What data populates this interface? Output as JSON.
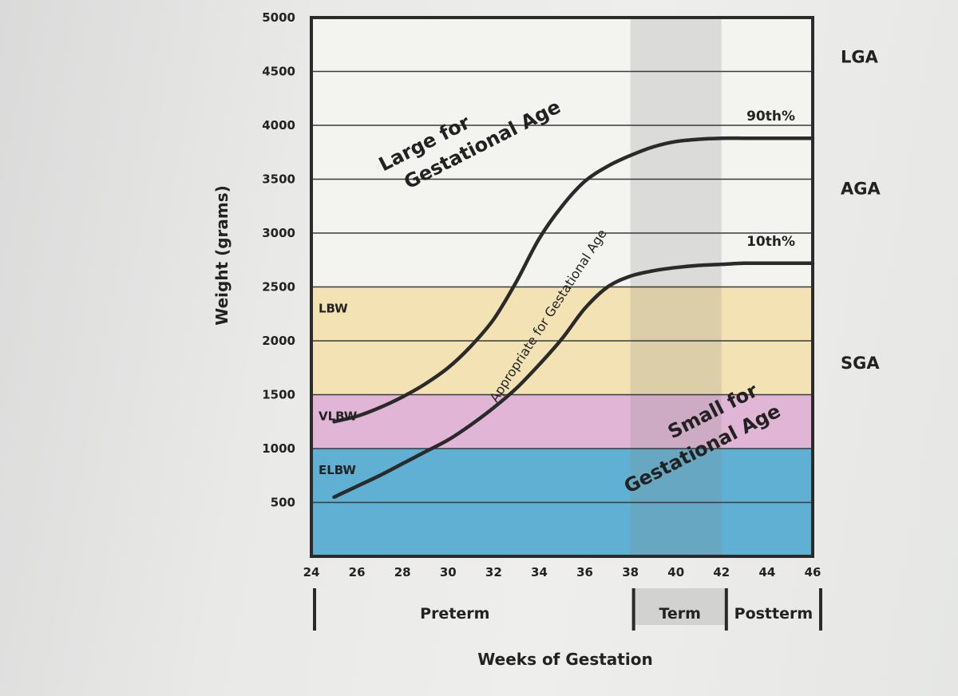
{
  "chart_data": {
    "type": "line",
    "xlabel": "Weeks of Gestation",
    "ylabel": "Weight (grams)",
    "xlim": [
      24,
      46
    ],
    "ylim": [
      0,
      5000
    ],
    "x_ticks": [
      "24",
      "26",
      "28",
      "30",
      "32",
      "34",
      "36",
      "38",
      "40",
      "42",
      "44",
      "46"
    ],
    "y_ticks": [
      "5000",
      "4500",
      "4000",
      "3500",
      "3000",
      "2500",
      "2000",
      "1500",
      "1000",
      "500"
    ],
    "grid": true,
    "series": [
      {
        "name": "90th%",
        "x": [
          25,
          26,
          27,
          28,
          29,
          30,
          31,
          32,
          33,
          34,
          35,
          36,
          37,
          38,
          39,
          40,
          41,
          42,
          43,
          44,
          45,
          46
        ],
        "values": [
          1250,
          1300,
          1380,
          1480,
          1600,
          1750,
          1950,
          2200,
          2550,
          2950,
          3250,
          3480,
          3620,
          3720,
          3800,
          3850,
          3870,
          3880,
          3880,
          3880,
          3880,
          3880
        ]
      },
      {
        "name": "10th%",
        "x": [
          25,
          26,
          27,
          28,
          29,
          30,
          31,
          32,
          33,
          34,
          35,
          36,
          37,
          38,
          39,
          40,
          41,
          42,
          43,
          44,
          45,
          46
        ],
        "values": [
          550,
          650,
          750,
          860,
          970,
          1080,
          1220,
          1380,
          1560,
          1780,
          2020,
          2300,
          2500,
          2600,
          2650,
          2680,
          2700,
          2710,
          2720,
          2720,
          2720,
          2720
        ]
      }
    ],
    "weight_bands": [
      {
        "label": "LBW",
        "from": 1500,
        "to": 2500,
        "color": "#f3e2b3"
      },
      {
        "label": "VLBW",
        "from": 1000,
        "to": 1500,
        "color": "#e1b5d6"
      },
      {
        "label": "ELBW",
        "from": 0,
        "to": 1000,
        "color": "#5fb0d2"
      }
    ],
    "term_shading": {
      "from": 38,
      "to": 42
    },
    "categories": [
      "LGA",
      "AGA",
      "SGA"
    ],
    "region_labels": {
      "large": [
        "Large for",
        "Gestational Age"
      ],
      "appropriate": "Appropriate for Gestational Age",
      "small": [
        "Small for",
        "Gestational Age"
      ]
    },
    "periods": [
      "Preterm",
      "Term",
      "Postterm"
    ]
  }
}
